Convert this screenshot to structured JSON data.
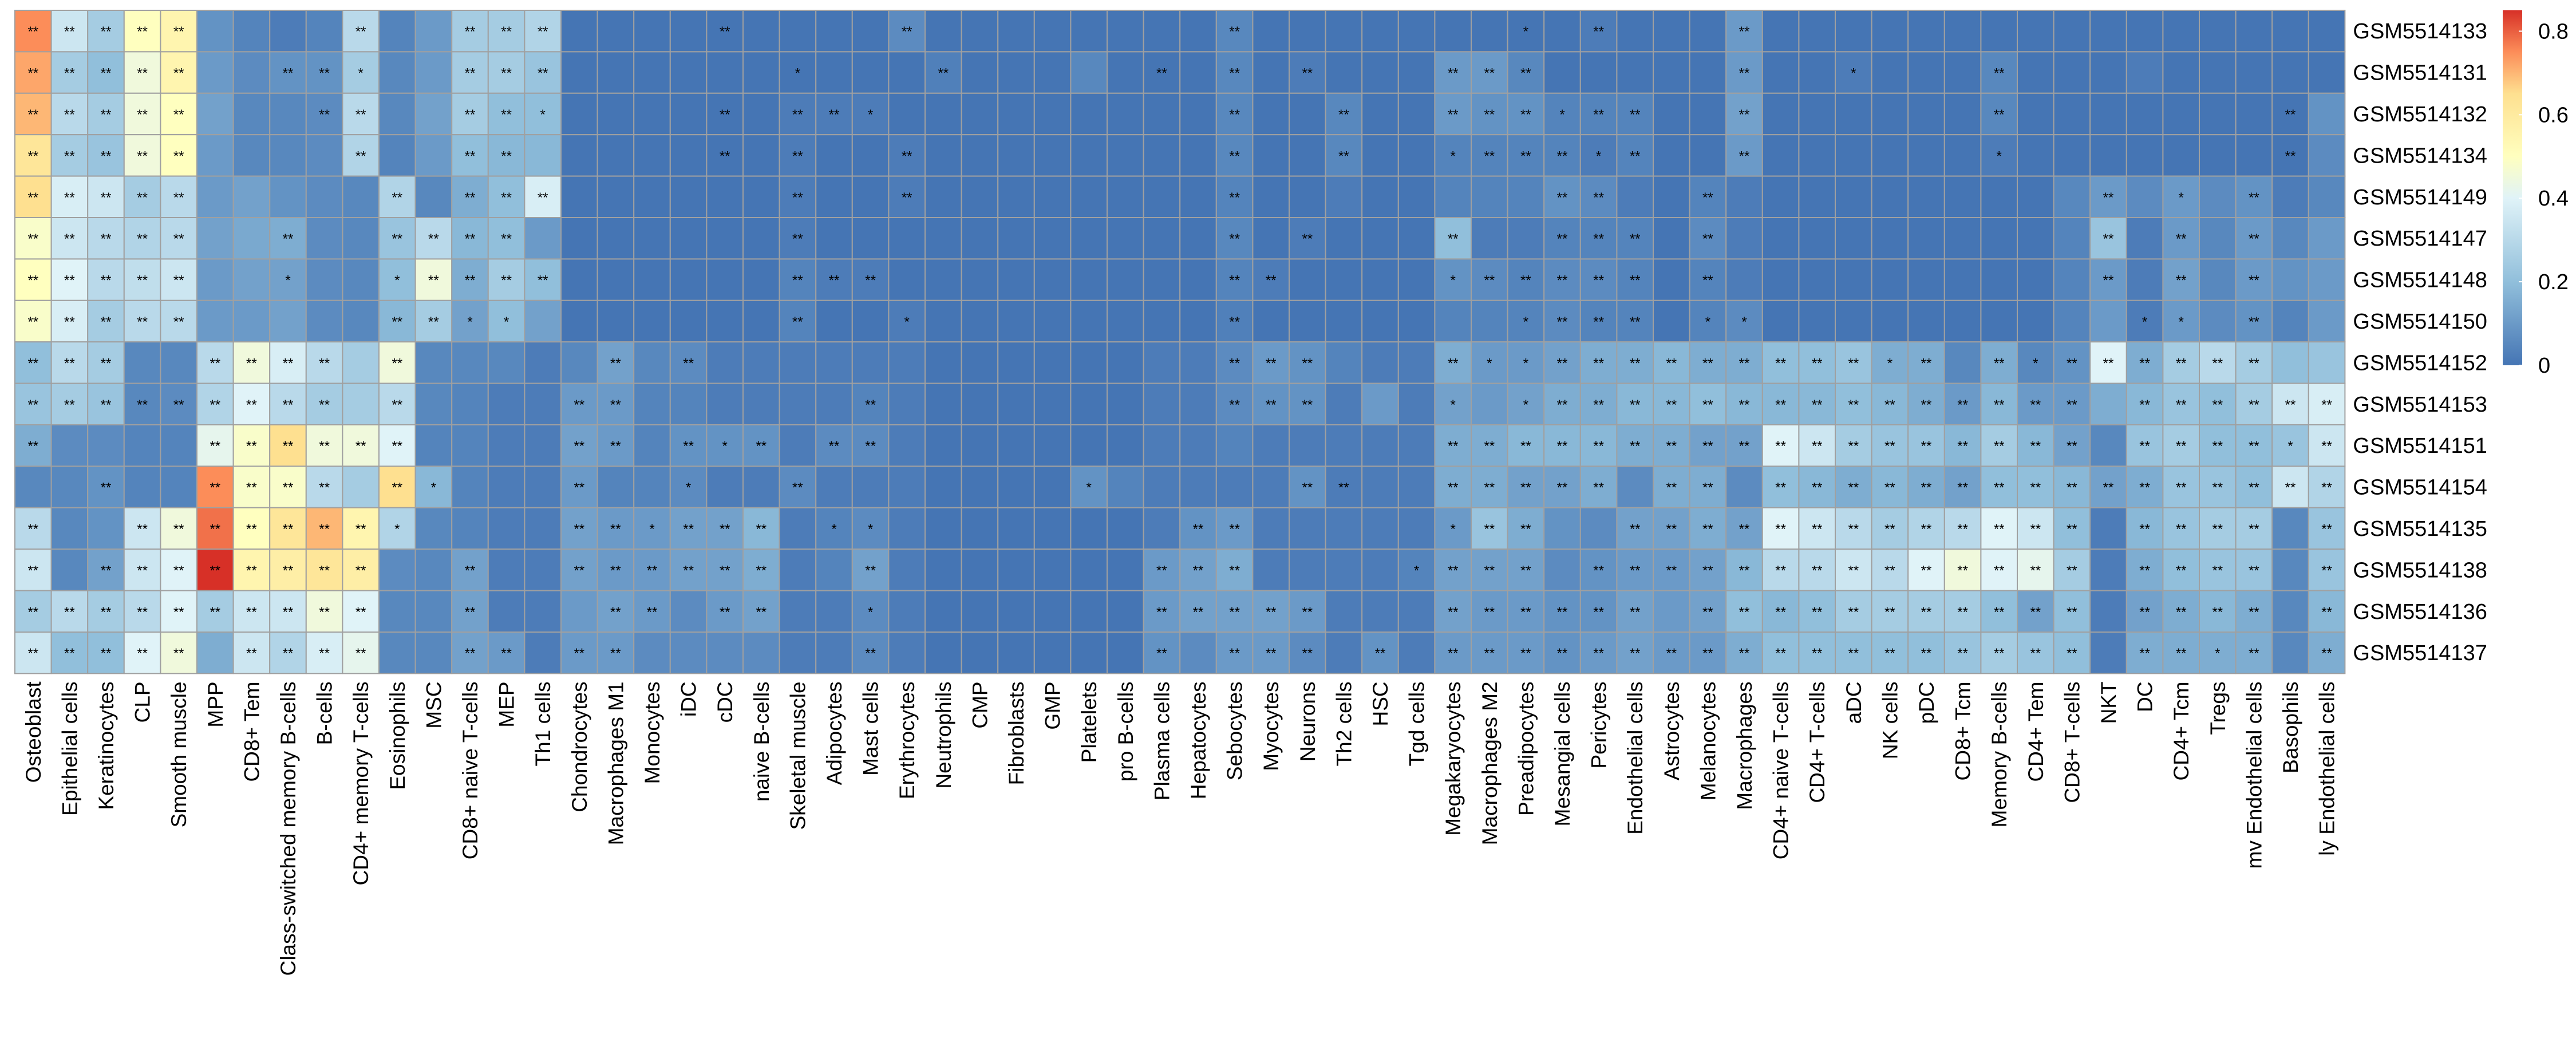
{
  "chart_data": {
    "type": "heatmap",
    "title": "",
    "xlabel": "",
    "ylabel": "",
    "rows": [
      "GSM5514133",
      "GSM5514131",
      "GSM5514132",
      "GSM5514134",
      "GSM5514149",
      "GSM5514147",
      "GSM5514148",
      "GSM5514150",
      "GSM5514152",
      "GSM5514153",
      "GSM5514151",
      "GSM5514154",
      "GSM5514135",
      "GSM5514138",
      "GSM5514136",
      "GSM5514137"
    ],
    "columns": [
      "Osteoblast",
      "Epithelial cells",
      "Keratinocytes",
      "CLP",
      "Smooth muscle",
      "MPP",
      "CD8+ Tem",
      "Class-switched memory B-cells",
      "B-cells",
      "CD4+ memory T-cells",
      "Eosinophils",
      "MSC",
      "CD8+ naive T-cells",
      "MEP",
      "Th1 cells",
      "Chondrocytes",
      "Macrophages M1",
      "Monocytes",
      "iDC",
      "cDC",
      "naive B-cells",
      "Skeletal muscle",
      "Adipocytes",
      "Mast cells",
      "Erythrocytes",
      "Neutrophils",
      "CMP",
      "Fibroblasts",
      "GMP",
      "Platelets",
      "pro B-cells",
      "Plasma cells",
      "Hepatocytes",
      "Sebocytes",
      "Myocytes",
      "Neurons",
      "Th2 cells",
      "HSC",
      "Tgd cells",
      "Megakaryocytes",
      "Macrophages M2",
      "Preadipocytes",
      "Mesangial cells",
      "Pericytes",
      "Endothelial cells",
      "Astrocytes",
      "Melanocytes",
      "Macrophages",
      "CD4+ naive T-cells",
      "CD4+ T-cells",
      "aDC",
      "NK cells",
      "pDC",
      "CD8+ Tcm",
      "Memory B-cells",
      "CD4+ Tem",
      "CD8+ T-cells",
      "NKT",
      "DC",
      "CD4+ Tcm",
      "Tregs",
      "mv Endothelial cells",
      "Basophils",
      "ly Endothelial cells"
    ],
    "values": [
      [
        0.75,
        0.35,
        0.25,
        0.5,
        0.55,
        0.08,
        0.04,
        0.02,
        0.04,
        0.3,
        0.04,
        0.1,
        0.25,
        0.25,
        0.28,
        0,
        0,
        0,
        0,
        0,
        0,
        0,
        0,
        0,
        0.06,
        0,
        0,
        0,
        0,
        0,
        0,
        0,
        0,
        0.05,
        0,
        0,
        0,
        0,
        0,
        0,
        0,
        0,
        0,
        0.02,
        0,
        0,
        0,
        0.1,
        0,
        0,
        0,
        0,
        0,
        0,
        0,
        0,
        0,
        0,
        0,
        0,
        0,
        0,
        0,
        0
      ],
      [
        0.72,
        0.25,
        0.2,
        0.45,
        0.55,
        0.1,
        0.06,
        0.08,
        0.08,
        0.25,
        0.05,
        0.1,
        0.25,
        0.25,
        0.22,
        0,
        0,
        0,
        0,
        0,
        0,
        0,
        0,
        0,
        0,
        0.03,
        0,
        0,
        0,
        0.05,
        0,
        0,
        0,
        0.05,
        0,
        0.02,
        0,
        0,
        0,
        0.1,
        0.1,
        0.05,
        0,
        0,
        0,
        0,
        0,
        0.1,
        0,
        0,
        0.02,
        0,
        0,
        0,
        0.05,
        0,
        0,
        0,
        0.02,
        0,
        0,
        0,
        0,
        0
      ],
      [
        0.7,
        0.3,
        0.25,
        0.45,
        0.5,
        0.12,
        0.05,
        0.05,
        0.06,
        0.3,
        0.05,
        0.12,
        0.25,
        0.2,
        0.2,
        0,
        0,
        0,
        0,
        0,
        0,
        0.02,
        0.02,
        0.02,
        0,
        0,
        0,
        0,
        0,
        0,
        0,
        0,
        0,
        0.05,
        0,
        0,
        0.05,
        0,
        0,
        0.1,
        0.08,
        0.08,
        0.04,
        0.04,
        0.04,
        0,
        0,
        0.12,
        0,
        0,
        0,
        0,
        0,
        0,
        0.05,
        0,
        0,
        0,
        0,
        0,
        0,
        0,
        0,
        0.08
      ],
      [
        0.62,
        0.25,
        0.22,
        0.45,
        0.5,
        0.1,
        0.05,
        0.05,
        0.06,
        0.28,
        0.04,
        0.1,
        0.2,
        0.18,
        0.18,
        0,
        0,
        0,
        0,
        0,
        0,
        0.02,
        0,
        0,
        0.02,
        0,
        0,
        0,
        0,
        0,
        0,
        0,
        0,
        0.05,
        0,
        0,
        0.05,
        0,
        0,
        0.04,
        0.04,
        0.04,
        0.04,
        0.02,
        0.04,
        0,
        0,
        0.1,
        0,
        0,
        0,
        0,
        0,
        0,
        0.02,
        0,
        0,
        0,
        0,
        0,
        0,
        0,
        0,
        0.06
      ],
      [
        0.65,
        0.38,
        0.35,
        0.25,
        0.3,
        0.1,
        0.12,
        0.08,
        0.06,
        0.05,
        0.28,
        0.05,
        0.15,
        0.2,
        0.38,
        0,
        0,
        0,
        0,
        0,
        0,
        0.02,
        0,
        0,
        0.02,
        0,
        0,
        0,
        0,
        0,
        0,
        0,
        0,
        0.04,
        0,
        0,
        0.02,
        0,
        0,
        0.04,
        0.04,
        0.04,
        0.08,
        0.06,
        0.02,
        0,
        0.04,
        0.02,
        0,
        0,
        0,
        0,
        0,
        0,
        0,
        0,
        0.05,
        0.1,
        0.06,
        0.1,
        0.06,
        0.08,
        0.02,
        0.05
      ],
      [
        0.48,
        0.35,
        0.3,
        0.28,
        0.3,
        0.12,
        0.14,
        0.15,
        0.06,
        0.05,
        0.22,
        0.3,
        0.18,
        0.2,
        0.1,
        0,
        0,
        0,
        0,
        0,
        0,
        0.02,
        0,
        0,
        0,
        0,
        0,
        0,
        0,
        0,
        0,
        0,
        0,
        0.05,
        0,
        0.02,
        0,
        0,
        0,
        0.2,
        0.02,
        0.02,
        0.04,
        0.04,
        0.04,
        0,
        0.06,
        0.02,
        0,
        0,
        0,
        0,
        0,
        0,
        0,
        0,
        0.04,
        0.22,
        0.02,
        0.1,
        0.05,
        0.1,
        0.05,
        0.1
      ],
      [
        0.5,
        0.4,
        0.3,
        0.32,
        0.35,
        0.1,
        0.12,
        0.12,
        0.06,
        0.05,
        0.2,
        0.45,
        0.15,
        0.25,
        0.2,
        0,
        0,
        0,
        0,
        0,
        0,
        0.04,
        0.02,
        0.02,
        0,
        0,
        0,
        0,
        0,
        0,
        0,
        0,
        0,
        0.04,
        0.02,
        0,
        0,
        0,
        0,
        0.08,
        0.06,
        0.04,
        0.06,
        0.06,
        0.04,
        0,
        0.04,
        0.02,
        0,
        0,
        0,
        0,
        0,
        0,
        0,
        0,
        0.04,
        0.1,
        0.02,
        0.12,
        0.05,
        0.1,
        0.08,
        0.1
      ],
      [
        0.48,
        0.38,
        0.25,
        0.3,
        0.3,
        0.1,
        0.1,
        0.12,
        0.06,
        0.05,
        0.18,
        0.25,
        0.12,
        0.2,
        0.12,
        0,
        0,
        0,
        0,
        0,
        0,
        0.04,
        0,
        0,
        0.02,
        0,
        0,
        0,
        0,
        0,
        0,
        0,
        0,
        0.03,
        0,
        0,
        0,
        0,
        0,
        0.04,
        0.04,
        0.04,
        0.06,
        0.04,
        0.04,
        0,
        0.04,
        0.06,
        0,
        0,
        0,
        0,
        0,
        0,
        0,
        0,
        0.04,
        0.1,
        0.02,
        0.1,
        0.06,
        0.08,
        0.04,
        0.1
      ],
      [
        0.2,
        0.3,
        0.25,
        0.05,
        0.05,
        0.3,
        0.45,
        0.38,
        0.3,
        0.25,
        0.45,
        0.05,
        0.05,
        0.05,
        0.02,
        0.05,
        0.12,
        0.05,
        0.06,
        0.02,
        0.02,
        0.02,
        0.02,
        0.02,
        0.02,
        0,
        0,
        0,
        0,
        0,
        0,
        0.02,
        0.02,
        0.06,
        0.1,
        0.08,
        0.04,
        0.02,
        0.02,
        0.15,
        0.1,
        0.1,
        0.12,
        0.15,
        0.15,
        0.18,
        0.15,
        0.15,
        0.2,
        0.2,
        0.22,
        0.15,
        0.15,
        0.05,
        0.15,
        0.05,
        0.08,
        0.4,
        0.15,
        0.25,
        0.3,
        0.25,
        0.2,
        0.22
      ],
      [
        0.22,
        0.25,
        0.22,
        0.05,
        0.06,
        0.28,
        0.4,
        0.3,
        0.25,
        0.25,
        0.3,
        0.05,
        0.04,
        0.02,
        0.02,
        0.1,
        0.1,
        0.04,
        0.04,
        0.02,
        0.02,
        0.02,
        0.02,
        0.04,
        0.02,
        0,
        0,
        0,
        0,
        0,
        0,
        0.02,
        0.02,
        0.06,
        0.08,
        0.08,
        0.02,
        0.1,
        0.02,
        0.12,
        0.1,
        0.12,
        0.15,
        0.15,
        0.18,
        0.18,
        0.2,
        0.18,
        0.18,
        0.18,
        0.2,
        0.18,
        0.15,
        0.1,
        0.18,
        0.1,
        0.1,
        0.15,
        0.18,
        0.22,
        0.2,
        0.25,
        0.35,
        0.38
      ],
      [
        0.15,
        0.06,
        0.06,
        0.04,
        0.04,
        0.42,
        0.48,
        0.65,
        0.45,
        0.45,
        0.4,
        0.04,
        0.04,
        0.02,
        0.02,
        0.12,
        0.1,
        0.04,
        0.08,
        0.08,
        0.08,
        0.02,
        0.06,
        0.06,
        0.02,
        0,
        0,
        0,
        0,
        0,
        0,
        0.02,
        0.02,
        0.04,
        0.02,
        0.02,
        0.02,
        0.02,
        0.02,
        0.15,
        0.15,
        0.18,
        0.18,
        0.18,
        0.15,
        0.15,
        0.12,
        0.12,
        0.4,
        0.35,
        0.25,
        0.22,
        0.22,
        0.18,
        0.25,
        0.18,
        0.12,
        0.05,
        0.22,
        0.25,
        0.2,
        0.2,
        0.22,
        0.35
      ],
      [
        0.05,
        0.05,
        0.08,
        0.04,
        0.04,
        0.75,
        0.48,
        0.48,
        0.3,
        0.25,
        0.65,
        0.18,
        0.04,
        0.02,
        0.02,
        0.1,
        0.04,
        0.04,
        0.06,
        0.02,
        0.02,
        0.06,
        0.02,
        0.02,
        0.02,
        0,
        0,
        0,
        0,
        0.08,
        0.04,
        0.02,
        0.02,
        0.02,
        0.02,
        0.08,
        0.02,
        0.02,
        0.02,
        0.15,
        0.15,
        0.12,
        0.12,
        0.15,
        0.06,
        0.15,
        0.15,
        0.06,
        0.2,
        0.18,
        0.15,
        0.18,
        0.15,
        0.12,
        0.2,
        0.2,
        0.18,
        0.12,
        0.15,
        0.22,
        0.22,
        0.2,
        0.35,
        0.28
      ],
      [
        0.3,
        0.05,
        0.08,
        0.35,
        0.45,
        0.78,
        0.5,
        0.62,
        0.7,
        0.55,
        0.28,
        0.05,
        0.04,
        0.02,
        0.02,
        0.12,
        0.1,
        0.1,
        0.12,
        0.12,
        0.18,
        0.02,
        0.04,
        0.06,
        0.02,
        0,
        0,
        0,
        0,
        0,
        0,
        0.02,
        0.08,
        0.1,
        0.02,
        0.02,
        0.02,
        0.02,
        0.02,
        0.1,
        0.22,
        0.15,
        0.08,
        0.06,
        0.12,
        0.12,
        0.15,
        0.12,
        0.4,
        0.35,
        0.3,
        0.25,
        0.28,
        0.3,
        0.4,
        0.35,
        0.2,
        0.02,
        0.18,
        0.22,
        0.25,
        0.25,
        0.05,
        0.22
      ],
      [
        0.35,
        0.05,
        0.12,
        0.35,
        0.4,
        0.88,
        0.55,
        0.58,
        0.62,
        0.58,
        0.06,
        0.05,
        0.12,
        0.02,
        0.02,
        0.12,
        0.1,
        0.1,
        0.12,
        0.12,
        0.15,
        0.02,
        0.04,
        0.12,
        0.02,
        0,
        0,
        0,
        0,
        0,
        0,
        0.1,
        0.12,
        0.15,
        0.02,
        0.02,
        0.02,
        0.02,
        0.04,
        0.12,
        0.12,
        0.12,
        0.06,
        0.08,
        0.1,
        0.1,
        0.12,
        0.18,
        0.3,
        0.3,
        0.35,
        0.3,
        0.4,
        0.45,
        0.4,
        0.42,
        0.25,
        0.02,
        0.15,
        0.2,
        0.22,
        0.22,
        0.05,
        0.22
      ],
      [
        0.25,
        0.3,
        0.25,
        0.3,
        0.4,
        0.25,
        0.35,
        0.35,
        0.45,
        0.4,
        0.05,
        0.05,
        0.12,
        0.02,
        0.02,
        0.1,
        0.12,
        0.1,
        0.06,
        0.1,
        0.12,
        0.02,
        0.02,
        0.06,
        0.02,
        0,
        0,
        0,
        0,
        0,
        0,
        0.1,
        0.12,
        0.12,
        0.12,
        0.1,
        0.02,
        0.02,
        0.02,
        0.12,
        0.1,
        0.1,
        0.08,
        0.08,
        0.12,
        0.1,
        0.12,
        0.2,
        0.18,
        0.2,
        0.25,
        0.25,
        0.25,
        0.25,
        0.2,
        0.12,
        0.2,
        0.02,
        0.12,
        0.15,
        0.18,
        0.15,
        0.05,
        0.18
      ],
      [
        0.35,
        0.2,
        0.2,
        0.4,
        0.45,
        0.15,
        0.35,
        0.28,
        0.38,
        0.42,
        0.05,
        0.05,
        0.12,
        0.1,
        0.02,
        0.1,
        0.1,
        0.06,
        0.06,
        0.06,
        0.06,
        0.02,
        0.02,
        0.06,
        0.02,
        0,
        0,
        0,
        0,
        0,
        0,
        0.08,
        0.06,
        0.1,
        0.1,
        0.06,
        0.02,
        0.08,
        0.02,
        0.1,
        0.1,
        0.1,
        0.08,
        0.1,
        0.12,
        0.1,
        0.1,
        0.15,
        0.2,
        0.2,
        0.2,
        0.2,
        0.2,
        0.22,
        0.25,
        0.22,
        0.2,
        0.02,
        0.15,
        0.15,
        0.15,
        0.15,
        0.05,
        0.15
      ]
    ],
    "significance": [
      "**,**,**,**,**,,,,,**,,,**,**,**,,,,,**,,,,,**,,,,,,,,,**,,,,,,,,*,,**,,,,**,,,,,,,,,,,,,,,,",
      "**,**,**,**,**,,,**,**,*,,,**,**,**,,,,,,,*,,,,**,,,,,,**,,**,,**,,,,**,**,**,,,,,,**,,,*,,,,**,,,,,,,,",
      "**,**,**,**,**,,,,**,**,,,**,**,*,,,,,**,,**,**,*,,,,,,,,,,**,,,**,,,**,**,**,*,**,**,,,**,,,,,,,**,,,,,,,,**",
      "**,**,**,**,**,,,,,**,,,**,**,,,,,,**,,**,,,**,,,,,,,,,**,,,**,,,*,**,**,**,*,**,,,**,,,,,,,*,,,,,,,,**",
      "**,**,**,**,**,,,,,,**,,**,**,**,,,,,,,**,,,**,,,,,,,,,**,,,,,,,,,**,**,,,**,,,,,,,,,,,**,,*,,**",
      "**,**,**,**,**,,,**,,,**,**,**,**,,,,,,,,**,,,,,,,,,,,,**,,**,,,,**,,,**,**,**,,**,,,,,,,,,,,**,,**,,**",
      "**,**,**,**,**,,,*,,,*,**,**,**,**,,,,,,,**,**,**,,,,,,,,,,**,**,,,,,*,**,**,**,**,**,,**,,,,,,,,,,,**,,**,,**",
      "**,**,**,**,**,,,,,,**,**,*,*,,,,,,,,**,,,*,,,,,,,,,**,,,,,,,,*,**,**,**,,*,*,,,,,,,,,,,*,*,,**",
      "**,**,**,,,**,**,**,**,,**,,,,,,**,,**,,,,,,,,,,,,,,,**,**,**,,,,**,*,*,**,**,**,**,**,**,**,**,**,*,**,,**,*,**,**,**,**,**,**",
      "**,**,**,**,**,**,**,**,**,,**,,,,,**,**,,,,,,,**,,,,,,,,,,**,**,**,,,,*,,*,**,**,**,**,**,**,**,**,**,**,**,**,**,**,**,,**,**,**,**,**,**",
      "**,,,,,**,**,**,**,**,**,,,,,**,**,,**,*,**,,**,**,,,,,,,,,,,,,,,,**,**,**,**,**,**,**,**,**,**,**,**,**,**,**,**,**,**,,**,**,**,**,*,**",
      ",,**,,,**,**,**,**,,**,*,,,,**,,,*,,,**,,,,,,,,*,,,,,,**,**,,,**,**,**,**,**,,**,**,,**,**,**,**,**,**,**,**,**,**,**,**,**,**,**,**",
      "**,,,**,**,**,**,**,**,**,*,,,,,**,**,*,**,**,**,,*,*,,,,,,,,,**,**,,,,,,*,**,**,,,**,**,**,**,**,**,**,**,**,**,**,**,**,,**,**,**,**,,**",
      "**,,**,**,**,**,**,**,**,**,,,**,,,**,**,**,**,**,**,,,**,,,,,,,,**,**,**,,,,,*,**,**,**,,**,**,**,**,**,**,**,**,**,**,**,**,**,**,,**,**,**,**,,**",
      "**,**,**,**,**,**,**,**,**,**,,,**,,,,**,**,,**,**,,,*,,,,,,,,**,**,**,**,**,,,,**,**,**,**,**,**,,**,**,**,**,**,**,**,**,**,**,**,,**,**,**,**,,**",
      "**,**,**,**,**,,**,**,**,**,,,**,**,,**,**,,,,,,,**,,,,,,,,**,,**,**,**,,**,,**,**,**,**,**,**,**,**,**,**,**,**,**,**,**,**,**,**,,**,**,*,**,,**"
    ],
    "color_scale": {
      "min": 0,
      "max": 0.85,
      "stops": [
        {
          "value": 0,
          "color": "#4575B4"
        },
        {
          "value": 0.2,
          "color": "#91BFDB"
        },
        {
          "value": 0.4,
          "color": "#E0F3F8"
        },
        {
          "value": 0.5,
          "color": "#FFFFBF"
        },
        {
          "value": 0.65,
          "color": "#FEE090"
        },
        {
          "value": 0.75,
          "color": "#FC8D59"
        },
        {
          "value": 0.85,
          "color": "#D73027"
        }
      ],
      "ticks": [
        0,
        0.2,
        0.4,
        0.6,
        0.8
      ],
      "tick_labels": [
        "0",
        "0.2",
        "0.4",
        "0.6",
        "0.8"
      ]
    },
    "legend": "right",
    "grid": true,
    "cell_border_color": "#A0A0A0"
  }
}
